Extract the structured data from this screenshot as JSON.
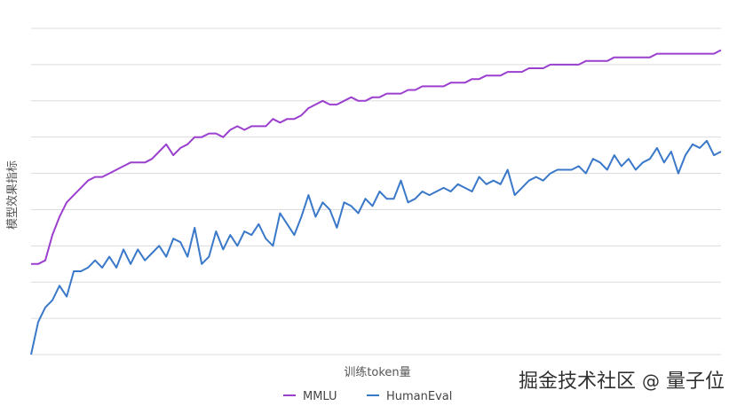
{
  "chart_data": {
    "type": "line",
    "xlabel": "训练token量",
    "ylabel": "模型效果指标",
    "grid": true,
    "legend_position": "bottom",
    "y_range": [
      0,
      9
    ],
    "series": [
      {
        "name": "MMLU",
        "color": "#9b3fcf",
        "values": [
          2.5,
          2.5,
          2.6,
          3.3,
          3.8,
          4.2,
          4.4,
          4.6,
          4.8,
          4.9,
          4.9,
          5.0,
          5.1,
          5.2,
          5.3,
          5.3,
          5.3,
          5.4,
          5.6,
          5.8,
          5.5,
          5.7,
          5.8,
          6.0,
          6.0,
          6.1,
          6.1,
          6.0,
          6.2,
          6.3,
          6.2,
          6.3,
          6.3,
          6.3,
          6.5,
          6.4,
          6.5,
          6.5,
          6.6,
          6.8,
          6.9,
          7.0,
          6.9,
          6.9,
          7.0,
          7.1,
          7.0,
          7.0,
          7.1,
          7.1,
          7.2,
          7.2,
          7.2,
          7.3,
          7.3,
          7.4,
          7.4,
          7.4,
          7.4,
          7.5,
          7.5,
          7.5,
          7.6,
          7.6,
          7.7,
          7.7,
          7.7,
          7.8,
          7.8,
          7.8,
          7.9,
          7.9,
          7.9,
          8.0,
          8.0,
          8.0,
          8.0,
          8.0,
          8.1,
          8.1,
          8.1,
          8.1,
          8.2,
          8.2,
          8.2,
          8.2,
          8.2,
          8.2,
          8.3,
          8.3,
          8.3,
          8.3,
          8.3,
          8.3,
          8.3,
          8.3,
          8.3,
          8.4
        ]
      },
      {
        "name": "HumanEval",
        "color": "#3a78c9",
        "values": [
          0.0,
          0.9,
          1.3,
          1.5,
          1.9,
          1.6,
          2.3,
          2.3,
          2.4,
          2.6,
          2.4,
          2.7,
          2.4,
          2.9,
          2.5,
          2.9,
          2.6,
          2.8,
          3.0,
          2.7,
          3.2,
          3.1,
          2.7,
          3.5,
          2.5,
          2.7,
          3.4,
          2.9,
          3.3,
          3.0,
          3.4,
          3.3,
          3.6,
          3.2,
          3.0,
          3.9,
          3.6,
          3.3,
          3.8,
          4.4,
          3.8,
          4.2,
          4.0,
          3.5,
          4.2,
          4.1,
          3.9,
          4.3,
          4.1,
          4.5,
          4.3,
          4.3,
          4.8,
          4.2,
          4.3,
          4.5,
          4.4,
          4.5,
          4.6,
          4.5,
          4.7,
          4.6,
          4.5,
          4.9,
          4.7,
          4.8,
          4.7,
          5.1,
          4.4,
          4.6,
          4.8,
          4.9,
          4.8,
          5.0,
          5.1,
          5.1,
          5.1,
          5.2,
          5.0,
          5.4,
          5.3,
          5.1,
          5.5,
          5.2,
          5.4,
          5.1,
          5.3,
          5.4,
          5.7,
          5.3,
          5.6,
          5.0,
          5.5,
          5.8,
          5.7,
          5.9,
          5.5,
          5.6
        ]
      }
    ]
  }
}
